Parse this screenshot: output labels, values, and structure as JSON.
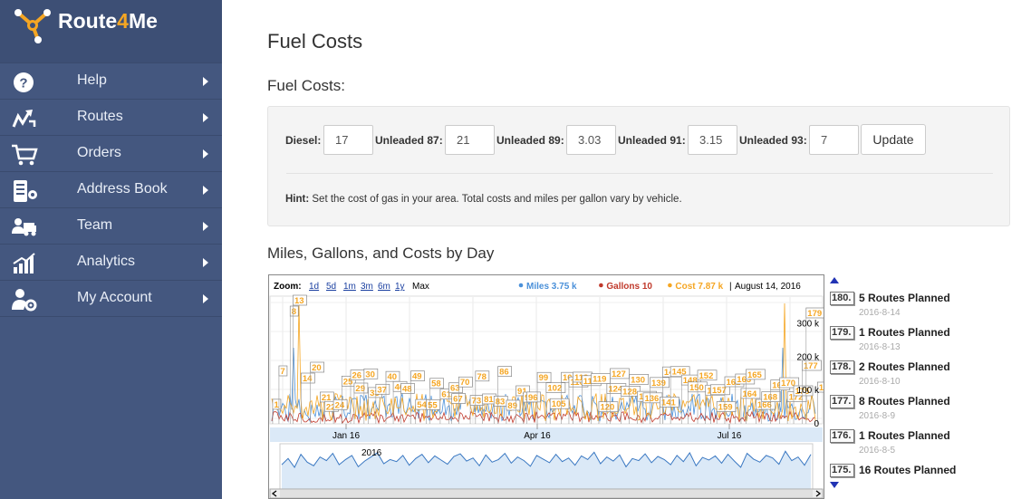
{
  "app": {
    "brand_prefix": "Route",
    "brand_four": "4",
    "brand_suffix": "Me"
  },
  "sidebar": {
    "items": [
      {
        "label": "Help",
        "icon": "help-circle-icon"
      },
      {
        "label": "Routes",
        "icon": "routes-icon"
      },
      {
        "label": "Orders",
        "icon": "cart-icon"
      },
      {
        "label": "Address Book",
        "icon": "address-book-icon"
      },
      {
        "label": "Team",
        "icon": "team-icon"
      },
      {
        "label": "Analytics",
        "icon": "analytics-icon"
      },
      {
        "label": "My Account",
        "icon": "account-gear-icon"
      }
    ]
  },
  "page": {
    "title": "Fuel Costs",
    "fuel_section_title": "Fuel Costs:",
    "chart_section_title": "Miles, Gallons, and Costs by Day"
  },
  "fuel": {
    "diesel_label": "Diesel:",
    "diesel_value": "17",
    "u87_label": "Unleaded 87:",
    "u87_value": "21",
    "u89_label": "Unleaded 89:",
    "u89_value": "3.03",
    "u91_label": "Unleaded 91:",
    "u91_value": "3.15",
    "u93_label": "Unleaded 93:",
    "u93_value": "7",
    "update_label": "Update",
    "hint_bold": "Hint:",
    "hint_text": " Set the cost of gas in your area. Total costs and miles per gallon vary by vehicle."
  },
  "chart_data": {
    "type": "line",
    "zoom": {
      "label": "Zoom:",
      "options": [
        "1d",
        "5d",
        "1m",
        "3m",
        "6m",
        "1y",
        "Max"
      ],
      "selected": "Max"
    },
    "legend": [
      {
        "name": "Miles",
        "value": "3.75 k",
        "color": "#4a90d9"
      },
      {
        "name": "Gallons",
        "value": "10",
        "color": "#c0392b"
      },
      {
        "name": "Cost",
        "value": "7.87 k",
        "color": "#f5a623"
      }
    ],
    "current_date": "August 14, 2016",
    "x_tick_labels": [
      "Jan 16",
      "Apr 16",
      "Jul 16"
    ],
    "y_tick_labels": [
      "300 k",
      "200 k",
      "100 k",
      "0"
    ],
    "ylim": [
      0,
      380000
    ],
    "navigator_year": "2016",
    "flag_labels": [
      "1",
      "7",
      "8",
      "13",
      "14",
      "20",
      "21",
      "22",
      "24",
      "25",
      "26",
      "29",
      "30",
      "33",
      "37",
      "40",
      "46",
      "48",
      "49",
      "54",
      "55",
      "58",
      "61",
      "63",
      "67",
      "70",
      "73",
      "78",
      "81",
      "83",
      "86",
      "89",
      "91",
      "95",
      "96",
      "99",
      "102",
      "105",
      "108",
      "110",
      "113",
      "115",
      "119",
      "120",
      "124",
      "127",
      "128",
      "130",
      "133",
      "136",
      "139",
      "141",
      "143",
      "145",
      "148",
      "150",
      "152",
      "155",
      "157",
      "159",
      "161",
      "163",
      "164",
      "165",
      "166",
      "168",
      "169",
      "170",
      "172",
      "175",
      "177",
      "179",
      "180"
    ],
    "navigator_series": [
      40,
      52,
      35,
      60,
      45,
      38,
      55,
      48,
      62,
      40,
      50,
      58,
      36,
      47,
      55,
      63,
      42,
      50,
      46,
      58,
      39,
      52,
      60,
      44,
      57,
      49,
      41,
      56,
      61,
      47,
      53,
      38,
      59,
      45,
      50,
      62,
      43,
      55,
      48,
      37,
      58,
      51,
      44,
      60,
      46,
      53,
      39,
      57,
      50,
      64,
      42,
      55,
      47,
      59,
      36,
      52,
      48,
      61,
      44,
      56,
      50,
      40,
      58,
      46,
      63,
      38,
      54,
      49,
      57,
      43,
      60,
      47,
      35,
      62,
      51,
      45,
      58,
      53,
      41,
      66,
      48,
      55,
      39,
      60
    ]
  },
  "annotations": [
    {
      "num": "180.",
      "text": "5 Routes Planned",
      "date": "2016-8-14"
    },
    {
      "num": "179.",
      "text": "1 Routes Planned",
      "date": "2016-8-13"
    },
    {
      "num": "178.",
      "text": "2 Routes Planned",
      "date": "2016-8-10"
    },
    {
      "num": "177.",
      "text": "8 Routes Planned",
      "date": "2016-8-9"
    },
    {
      "num": "176.",
      "text": "1 Routes Planned",
      "date": "2016-8-5"
    },
    {
      "num": "175.",
      "text": "16 Routes Planned",
      "date": ""
    }
  ]
}
